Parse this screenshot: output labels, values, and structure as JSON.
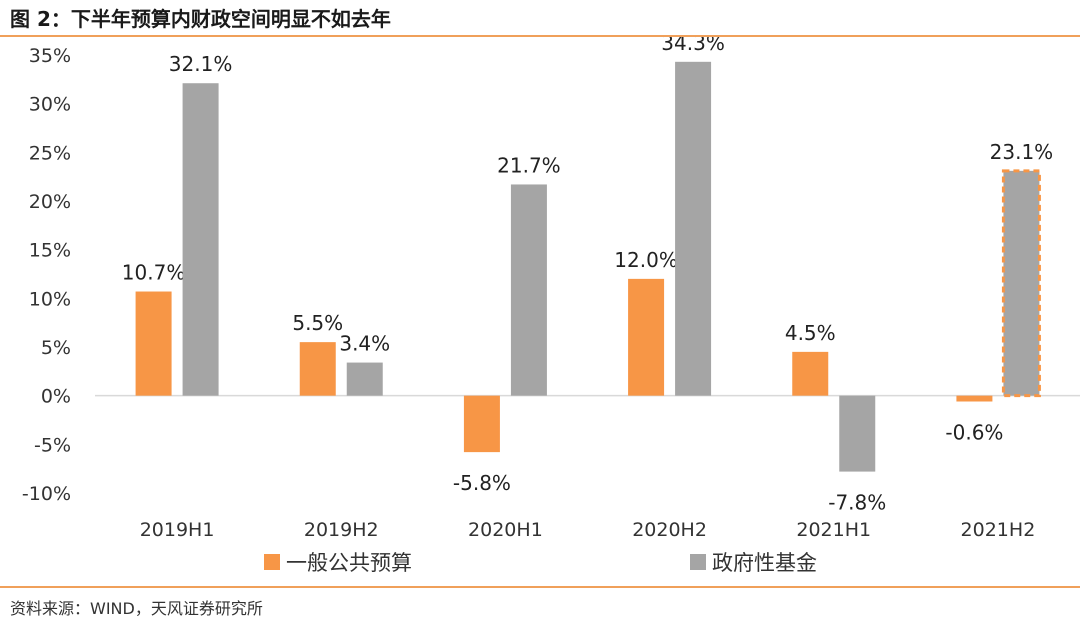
{
  "title": "图 2：下半年预算内财政空间明显不如去年",
  "source": "资料来源：WIND，天风证券研究所",
  "chart_data": {
    "type": "bar",
    "categories": [
      "2019H1",
      "2019H2",
      "2020H1",
      "2020H2",
      "2021H1",
      "2021H2"
    ],
    "series": [
      {
        "name": "一般公共预算",
        "color": "#f79646",
        "values": [
          10.7,
          5.5,
          -5.8,
          12.0,
          4.5,
          -0.6
        ],
        "labels": [
          "10.7%",
          "5.5%",
          "-5.8%",
          "12.0%",
          "4.5%",
          "-0.6%"
        ]
      },
      {
        "name": "政府性基金",
        "color": "#a5a5a5",
        "values": [
          32.1,
          3.4,
          21.7,
          34.3,
          -7.8,
          23.1
        ],
        "labels": [
          "32.1%",
          "3.4%",
          "21.7%",
          "34.3%",
          "-7.8%",
          "23.1%"
        ],
        "highlight_last": true,
        "highlight_color": "#f79646"
      }
    ],
    "y_ticks": [
      35,
      30,
      25,
      20,
      15,
      10,
      5,
      0,
      -5,
      -10
    ],
    "y_tick_labels": [
      "35%",
      "30%",
      "25%",
      "20%",
      "15%",
      "10%",
      "5%",
      "0%",
      "-5%",
      "-10%"
    ],
    "ylim": [
      -10,
      35
    ],
    "grid": false,
    "legend_position": "bottom"
  }
}
